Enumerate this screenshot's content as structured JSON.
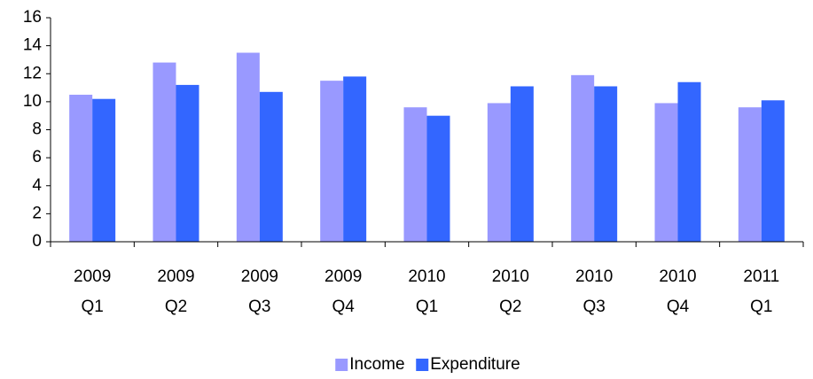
{
  "chart_data": {
    "type": "bar",
    "categories": [
      [
        "2009",
        "Q1"
      ],
      [
        "2009",
        "Q2"
      ],
      [
        "2009",
        "Q3"
      ],
      [
        "2009",
        "Q4"
      ],
      [
        "2010",
        "Q1"
      ],
      [
        "2010",
        "Q2"
      ],
      [
        "2010",
        "Q3"
      ],
      [
        "2010",
        "Q4"
      ],
      [
        "2011",
        "Q1"
      ]
    ],
    "series": [
      {
        "name": "Income",
        "color": "#9999ff",
        "values": [
          10.5,
          12.8,
          13.5,
          11.5,
          9.6,
          9.9,
          11.9,
          9.9,
          9.6
        ]
      },
      {
        "name": "Expenditure",
        "color": "#3366ff",
        "values": [
          10.2,
          11.2,
          10.7,
          11.8,
          9.0,
          11.1,
          11.1,
          11.4,
          10.1
        ]
      }
    ],
    "ylim": [
      0,
      16
    ],
    "yticks": [
      0,
      2,
      4,
      6,
      8,
      10,
      12,
      14,
      16
    ],
    "grid": false,
    "legend": "bottom"
  }
}
